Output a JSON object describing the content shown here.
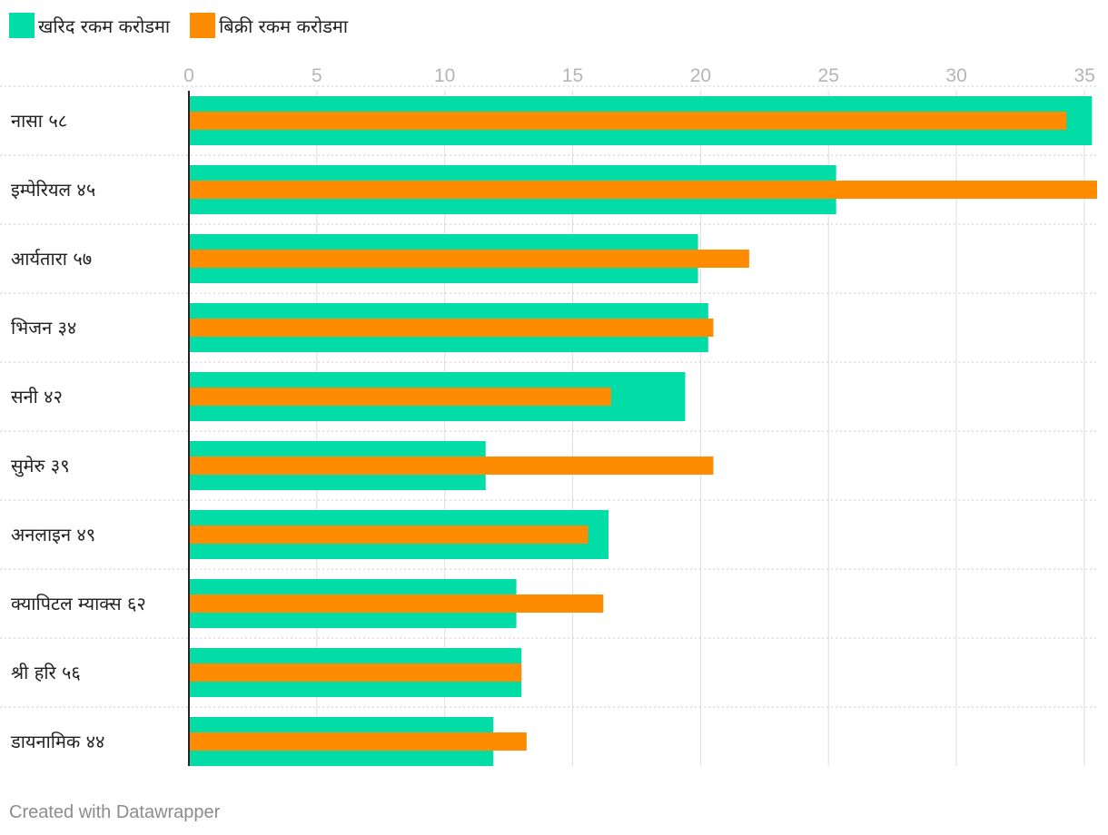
{
  "chart_data": {
    "type": "bar",
    "orientation": "horizontal",
    "title": "",
    "xlabel": "",
    "ylabel": "",
    "xlim": [
      0,
      35.5
    ],
    "ticks": [
      "0",
      "5",
      "10",
      "15",
      "20",
      "25",
      "30",
      "35"
    ],
    "tick_values": [
      0,
      5,
      10,
      15,
      20,
      25,
      30,
      35
    ],
    "grid": true,
    "legend_position": "top-left",
    "categories": [
      "नासा ५८",
      "इम्पेरियल ४५",
      "आर्यतारा ५७",
      "भिजन ३४",
      "सनी ४२",
      "सुमेरु ३९",
      "अनलाइन ४९",
      "क्यापिटल म्याक्स ६२",
      "श्री हरि ५६",
      "डायनामिक ४४"
    ],
    "series": [
      {
        "name": "खरिद रकम करोडमा",
        "color": "#02dca6",
        "values": [
          35.3,
          25.3,
          19.9,
          20.3,
          19.4,
          11.6,
          16.4,
          12.8,
          13.0,
          11.9
        ]
      },
      {
        "name": "बिक्री रकम करोडमा",
        "color": "#fe8b00",
        "values": [
          34.3,
          35.5,
          21.9,
          20.5,
          16.5,
          20.5,
          15.6,
          16.2,
          13.0,
          13.2
        ]
      }
    ]
  },
  "footer": "Created with Datawrapper"
}
